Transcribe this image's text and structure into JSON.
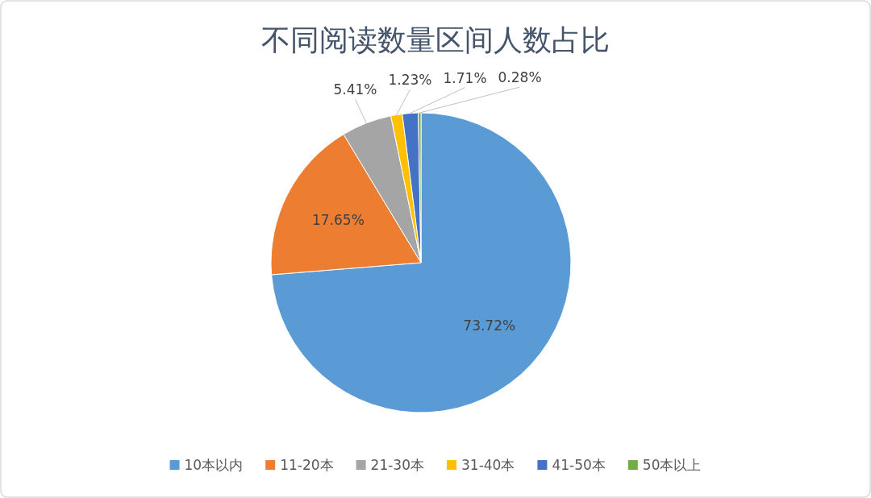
{
  "chart_data": {
    "type": "pie",
    "title": "不同阅读数量区间人数占比",
    "categories": [
      "10本以内",
      "11-20本",
      "21-30本",
      "31-40本",
      "41-50本",
      "50本以上"
    ],
    "values": [
      73.72,
      17.65,
      5.41,
      1.23,
      1.71,
      0.28
    ],
    "value_labels": [
      "73.72%",
      "17.65%",
      "5.41%",
      "1.23%",
      "1.71%",
      "0.28%"
    ],
    "colors": [
      "#5b9bd5",
      "#ed7d31",
      "#a5a5a5",
      "#ffc000",
      "#4472c4",
      "#70ad47"
    ],
    "legend": "bottom"
  }
}
